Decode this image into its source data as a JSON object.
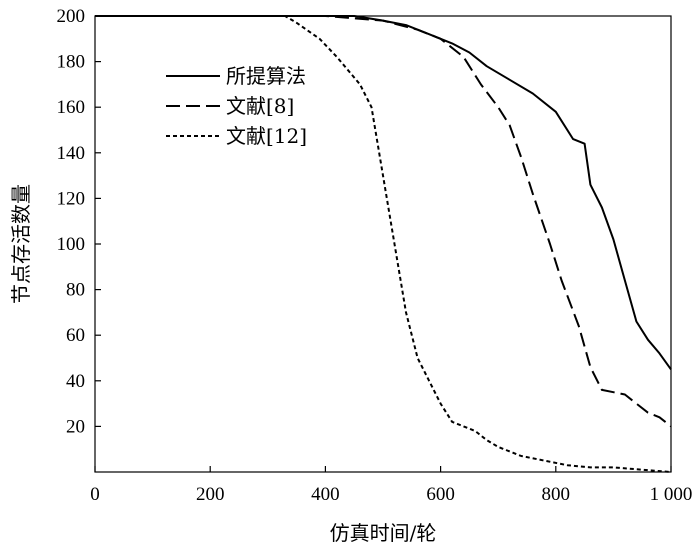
{
  "chart_data": {
    "type": "line",
    "title": "",
    "xlabel": "仿真时间/轮",
    "ylabel": "节点存活数量",
    "xlim": [
      0,
      1000
    ],
    "ylim": [
      0,
      200
    ],
    "x_ticks": [
      {
        "value": 0,
        "label": "0"
      },
      {
        "value": 200,
        "label": "200"
      },
      {
        "value": 400,
        "label": "400"
      },
      {
        "value": 600,
        "label": "600"
      },
      {
        "value": 800,
        "label": "800"
      },
      {
        "value": 1000,
        "label": "1 000"
      }
    ],
    "y_ticks": [
      {
        "value": 20,
        "label": "20"
      },
      {
        "value": 40,
        "label": "40"
      },
      {
        "value": 60,
        "label": "60"
      },
      {
        "value": 80,
        "label": "80"
      },
      {
        "value": 100,
        "label": "100"
      },
      {
        "value": 120,
        "label": "120"
      },
      {
        "value": 140,
        "label": "140"
      },
      {
        "value": 160,
        "label": "160"
      },
      {
        "value": 180,
        "label": "180"
      },
      {
        "value": 200,
        "label": "200"
      }
    ],
    "grid": false,
    "legend_position": "upper-left",
    "series": [
      {
        "name": "所提算法",
        "style": "solid",
        "color": "#000000",
        "points": [
          [
            0,
            200
          ],
          [
            450,
            200
          ],
          [
            500,
            198
          ],
          [
            540,
            196
          ],
          [
            580,
            192
          ],
          [
            620,
            188
          ],
          [
            650,
            184
          ],
          [
            680,
            178
          ],
          [
            720,
            172
          ],
          [
            760,
            166
          ],
          [
            800,
            158
          ],
          [
            830,
            146
          ],
          [
            850,
            144
          ],
          [
            860,
            126
          ],
          [
            880,
            116
          ],
          [
            900,
            102
          ],
          [
            920,
            84
          ],
          [
            940,
            66
          ],
          [
            960,
            58
          ],
          [
            980,
            52
          ],
          [
            1000,
            45
          ]
        ]
      },
      {
        "name": "文献[8]",
        "style": "dashed",
        "color": "#000000",
        "points": [
          [
            0,
            200
          ],
          [
            400,
            200
          ],
          [
            500,
            198
          ],
          [
            560,
            194
          ],
          [
            600,
            190
          ],
          [
            640,
            182
          ],
          [
            670,
            170
          ],
          [
            700,
            160
          ],
          [
            720,
            152
          ],
          [
            740,
            138
          ],
          [
            760,
            122
          ],
          [
            790,
            100
          ],
          [
            810,
            84
          ],
          [
            840,
            64
          ],
          [
            860,
            46
          ],
          [
            880,
            36
          ],
          [
            900,
            35
          ],
          [
            920,
            34
          ],
          [
            940,
            30
          ],
          [
            960,
            26
          ],
          [
            980,
            24
          ],
          [
            1000,
            20
          ]
        ]
      },
      {
        "name": "文献[12]",
        "style": "dotted",
        "color": "#000000",
        "points": [
          [
            0,
            200
          ],
          [
            330,
            200
          ],
          [
            350,
            197
          ],
          [
            390,
            190
          ],
          [
            420,
            182
          ],
          [
            460,
            170
          ],
          [
            480,
            160
          ],
          [
            500,
            130
          ],
          [
            520,
            100
          ],
          [
            540,
            70
          ],
          [
            560,
            50
          ],
          [
            580,
            40
          ],
          [
            600,
            30
          ],
          [
            620,
            22
          ],
          [
            640,
            20
          ],
          [
            660,
            18
          ],
          [
            680,
            14
          ],
          [
            700,
            11
          ],
          [
            740,
            7
          ],
          [
            780,
            5
          ],
          [
            820,
            3
          ],
          [
            860,
            2
          ],
          [
            900,
            2
          ],
          [
            950,
            1
          ],
          [
            1000,
            0
          ]
        ]
      }
    ]
  }
}
